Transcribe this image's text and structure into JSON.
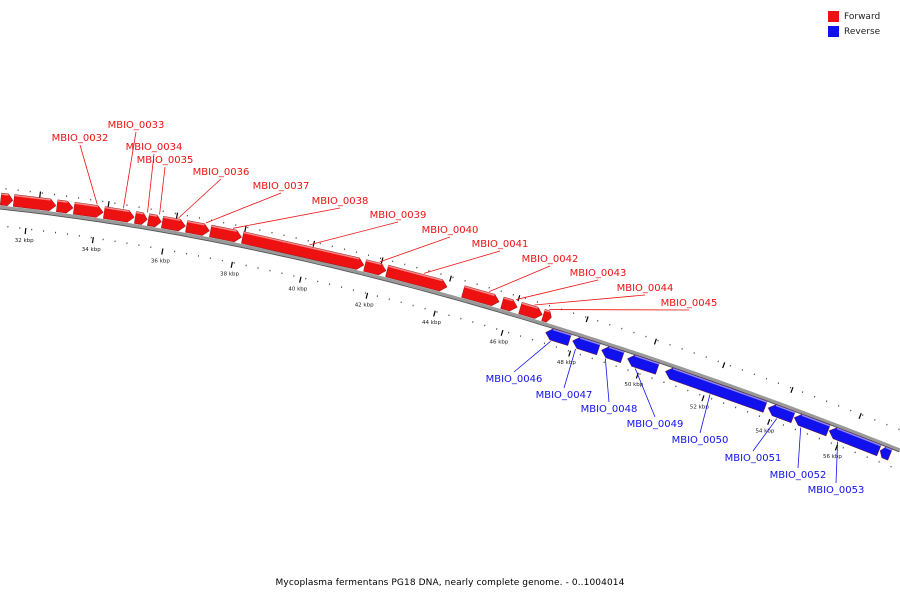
{
  "caption": "Mycoplasma fermentans PG18 DNA, nearly complete genome. - 0..1004014",
  "legend": [
    {
      "label": "Forward",
      "color": "#ee1111"
    },
    {
      "label": "Reverse",
      "color": "#1111ee"
    }
  ],
  "colors": {
    "forward": "#ee1111",
    "reverse": "#1111ee",
    "backbone": "#888888"
  },
  "scale_labels": [
    "32 kbp",
    "34 kbp",
    "36 kbp",
    "38 kbp",
    "40 kbp",
    "42 kbp",
    "44 kbp",
    "46 kbp",
    "48 kbp",
    "50 kbp",
    "52 kbp",
    "54 kbp",
    "56 kbp"
  ],
  "genes": [
    {
      "label": "MBIO_0032",
      "strand": "forward"
    },
    {
      "label": "MBIO_0033",
      "strand": "forward"
    },
    {
      "label": "MBIO_0034",
      "strand": "forward"
    },
    {
      "label": "MBIO_0035",
      "strand": "forward"
    },
    {
      "label": "MBIO_0036",
      "strand": "forward"
    },
    {
      "label": "MBIO_0037",
      "strand": "forward"
    },
    {
      "label": "MBIO_0038",
      "strand": "forward"
    },
    {
      "label": "MBIO_0039",
      "strand": "forward"
    },
    {
      "label": "MBIO_0040",
      "strand": "forward"
    },
    {
      "label": "MBIO_0041",
      "strand": "forward"
    },
    {
      "label": "MBIO_0042",
      "strand": "forward"
    },
    {
      "label": "MBIO_0043",
      "strand": "forward"
    },
    {
      "label": "MBIO_0044",
      "strand": "forward"
    },
    {
      "label": "MBIO_0045",
      "strand": "forward"
    },
    {
      "label": "MBIO_0046",
      "strand": "reverse"
    },
    {
      "label": "MBIO_0047",
      "strand": "reverse"
    },
    {
      "label": "MBIO_0048",
      "strand": "reverse"
    },
    {
      "label": "MBIO_0049",
      "strand": "reverse"
    },
    {
      "label": "MBIO_0050",
      "strand": "reverse"
    },
    {
      "label": "MBIO_0051",
      "strand": "reverse"
    },
    {
      "label": "MBIO_0052",
      "strand": "reverse"
    },
    {
      "label": "MBIO_0053",
      "strand": "reverse"
    }
  ]
}
